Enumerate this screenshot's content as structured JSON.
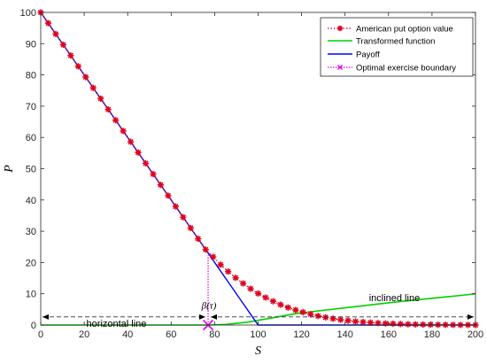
{
  "chart_data": {
    "type": "line",
    "title": "",
    "xlabel": "S",
    "ylabel": "P",
    "xlim": [
      0,
      200
    ],
    "ylim": [
      0,
      100
    ],
    "xticks": [
      0,
      20,
      40,
      60,
      80,
      100,
      120,
      140,
      160,
      180,
      200
    ],
    "yticks": [
      0,
      10,
      20,
      30,
      40,
      50,
      60,
      70,
      80,
      90,
      100
    ],
    "grid": false,
    "legend_position": "top-right",
    "legend": [
      {
        "label": "American put option value",
        "color": "#e0001b",
        "style": "dotted-star"
      },
      {
        "label": "Transformed function",
        "color": "#00d000",
        "style": "solid"
      },
      {
        "label": "Payoff",
        "color": "#0000ff",
        "style": "solid"
      },
      {
        "label": "Optimal exercise boundary",
        "color": "#e000e0",
        "style": "dotted-cross"
      }
    ],
    "series": [
      {
        "name": "American put option value",
        "color": "#e0001b",
        "x": [
          0,
          3.45,
          6.9,
          10.34,
          13.79,
          17.24,
          20.69,
          24.14,
          27.59,
          31.03,
          34.48,
          37.93,
          41.38,
          44.83,
          48.28,
          51.72,
          55.17,
          58.62,
          62.07,
          65.52,
          68.97,
          72.41,
          75.86,
          79.31,
          82.76,
          86.21,
          89.66,
          93.1,
          96.55,
          100,
          103.45,
          106.9,
          110.34,
          113.79,
          117.24,
          120.69,
          124.14,
          127.59,
          131.03,
          134.48,
          137.93,
          141.38,
          144.83,
          148.28,
          151.72,
          155.17,
          158.62,
          162.07,
          165.52,
          168.97,
          172.41,
          175.86,
          179.31,
          182.76,
          186.21,
          189.66,
          193.1,
          196.55,
          200
        ],
        "y": [
          100,
          96.55,
          93.1,
          89.66,
          86.21,
          82.76,
          79.31,
          75.86,
          72.41,
          68.97,
          65.52,
          62.07,
          58.62,
          55.17,
          51.72,
          48.28,
          44.83,
          41.38,
          37.93,
          34.48,
          31.03,
          27.59,
          24.14,
          21.8,
          19.3,
          17.1,
          15.1,
          13.3,
          11.6,
          10.1,
          8.8,
          7.6,
          6.5,
          5.6,
          4.8,
          4.1,
          3.45,
          2.9,
          2.45,
          2.05,
          1.7,
          1.4,
          1.15,
          0.95,
          0.78,
          0.63,
          0.51,
          0.41,
          0.33,
          0.26,
          0.2,
          0.16,
          0.12,
          0.09,
          0.07,
          0.05,
          0.03,
          0.02,
          0.01
        ]
      },
      {
        "name": "Transformed function",
        "color": "#00d000",
        "x": [
          0,
          10,
          20,
          30,
          40,
          50,
          60,
          70,
          77,
          85,
          95,
          105,
          112,
          117,
          125,
          135,
          145,
          155,
          165,
          175,
          185,
          195,
          200
        ],
        "y": [
          0,
          0,
          0,
          0,
          0,
          0,
          0,
          0,
          0,
          0.2,
          0.9,
          2.1,
          3.0,
          3.6,
          4.3,
          5.1,
          5.9,
          6.7,
          7.5,
          8.2,
          8.9,
          9.6,
          10.0
        ]
      },
      {
        "name": "Payoff",
        "color": "#0000ff",
        "x": [
          0,
          100,
          200
        ],
        "y": [
          100,
          0,
          0
        ]
      },
      {
        "name": "Optimal exercise boundary",
        "color": "#e000e0",
        "x": [
          77,
          77
        ],
        "y": [
          0,
          22.3
        ]
      }
    ],
    "boundary_point": {
      "x": 77,
      "y": 0
    },
    "annotations": {
      "beta": "β(τ)",
      "horizontal_line": "horizontal line",
      "inclined_line": "inclined line",
      "dashed_level": 2.6
    }
  }
}
